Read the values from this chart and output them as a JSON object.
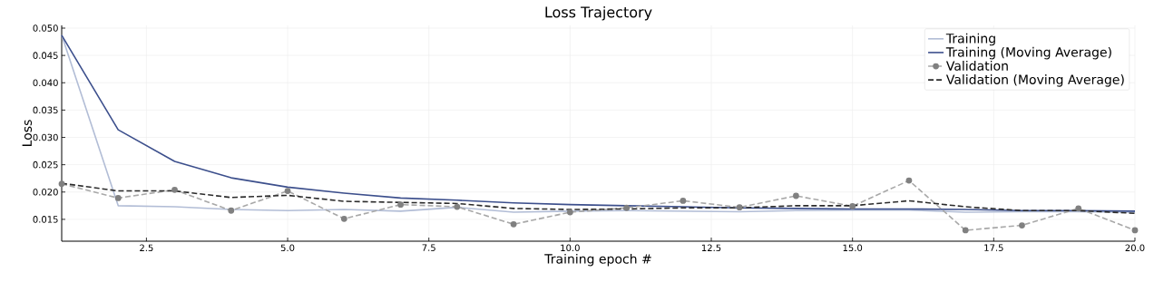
{
  "chart_data": {
    "type": "line",
    "title": "Loss Trajectory",
    "xlabel": "Training epoch #",
    "ylabel": "Loss",
    "x": [
      1,
      2,
      3,
      4,
      5,
      6,
      7,
      8,
      9,
      10,
      11,
      12,
      13,
      14,
      15,
      16,
      17,
      18,
      19,
      20
    ],
    "series": [
      {
        "name": "Training",
        "color": "#b2bdd6",
        "line_style": "solid",
        "marker": "none",
        "values": [
          0.0487,
          0.0175,
          0.0173,
          0.0168,
          0.0166,
          0.0168,
          0.0165,
          0.0172,
          0.0163,
          0.0165,
          0.0166,
          0.0165,
          0.0164,
          0.0166,
          0.0167,
          0.0167,
          0.0163,
          0.0164,
          0.0164,
          0.0163
        ]
      },
      {
        "name": "Training (Moving Average)",
        "color": "#3c4f8c",
        "line_style": "solid",
        "marker": "none",
        "values": [
          0.0487,
          0.0314,
          0.0256,
          0.0226,
          0.0209,
          0.0198,
          0.0189,
          0.0185,
          0.018,
          0.0177,
          0.0175,
          0.0173,
          0.0171,
          0.017,
          0.0169,
          0.0169,
          0.0168,
          0.0166,
          0.0166,
          0.0165
        ]
      },
      {
        "name": "Validation",
        "color": "#a8a8a8",
        "line_style": "dashed",
        "marker": "circle",
        "values": [
          0.0215,
          0.0189,
          0.0204,
          0.0166,
          0.0202,
          0.0151,
          0.0177,
          0.0173,
          0.0141,
          0.0163,
          0.0171,
          0.0184,
          0.0172,
          0.0193,
          0.0174,
          0.0221,
          0.013,
          0.0139,
          0.017,
          0.013
        ]
      },
      {
        "name": "Validation (Moving Average)",
        "color": "#2b2b2b",
        "line_style": "dashed",
        "marker": "none",
        "values": [
          0.0216,
          0.0202,
          0.0202,
          0.019,
          0.0194,
          0.0183,
          0.0181,
          0.0179,
          0.017,
          0.0168,
          0.0169,
          0.0171,
          0.0171,
          0.0175,
          0.0175,
          0.0184,
          0.0173,
          0.0166,
          0.0166,
          0.0161
        ]
      }
    ],
    "xlim": [
      1,
      20
    ],
    "ylim": [
      0.011,
      0.0505
    ],
    "xticks": [
      2.5,
      {
        "value": 5,
        "label": "5.0"
      },
      7.5,
      {
        "value": 10,
        "label": "10.0"
      },
      12.5,
      {
        "value": 15,
        "label": "15.0"
      },
      17.5,
      {
        "value": 20,
        "label": "20.0"
      }
    ],
    "yticks": [
      0.015,
      {
        "value": 0.02,
        "label": "0.020"
      },
      0.025,
      {
        "value": 0.03,
        "label": "0.030"
      },
      0.035,
      {
        "value": 0.04,
        "label": "0.040"
      },
      0.045,
      {
        "value": 0.05,
        "label": "0.050"
      }
    ],
    "grid": true,
    "legend": "top right"
  }
}
